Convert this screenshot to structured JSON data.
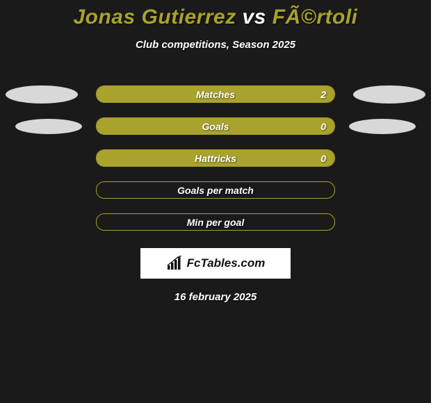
{
  "title": {
    "left": "Jonas Gutierrez",
    "vs": " vs ",
    "right": "FÃ©rtoli"
  },
  "subtitle": "Club competitions, Season 2025",
  "colors": {
    "accent": "#a9a22e",
    "background": "#1a1a1a",
    "ellipse": "#d8d8d8",
    "text": "#ffffff"
  },
  "rows": [
    {
      "label": "Matches",
      "fill_pct": 100,
      "value_right": "2",
      "show_left_ellipse": true,
      "left_small": false,
      "show_right_ellipse": true,
      "right_small": false
    },
    {
      "label": "Goals",
      "fill_pct": 100,
      "value_right": "0",
      "show_left_ellipse": true,
      "left_small": true,
      "show_right_ellipse": true,
      "right_small": true
    },
    {
      "label": "Hattricks",
      "fill_pct": 100,
      "value_right": "0",
      "show_left_ellipse": false,
      "left_small": false,
      "show_right_ellipse": false,
      "right_small": false
    },
    {
      "label": "Goals per match",
      "fill_pct": 0,
      "value_right": "",
      "show_left_ellipse": false,
      "left_small": false,
      "show_right_ellipse": false,
      "right_small": false
    },
    {
      "label": "Min per goal",
      "fill_pct": 0,
      "value_right": "",
      "show_left_ellipse": false,
      "left_small": false,
      "show_right_ellipse": false,
      "right_small": false
    }
  ],
  "brand": "FcTables.com",
  "date": "16 february 2025"
}
